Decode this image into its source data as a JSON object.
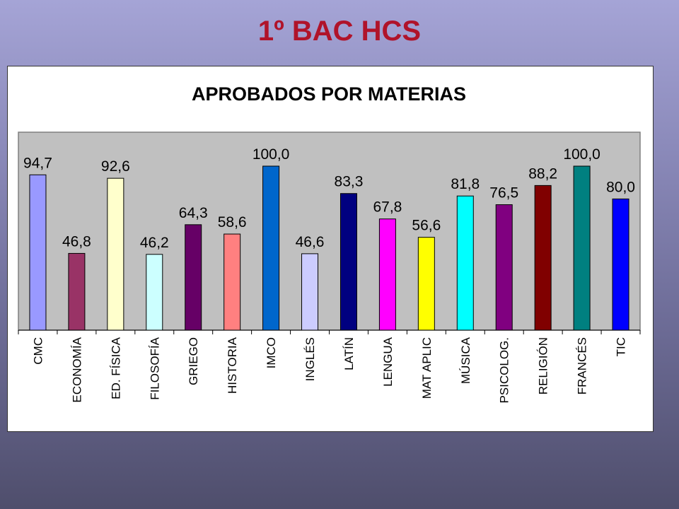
{
  "slide": {
    "title": "1º BAC HCS"
  },
  "chart_data": {
    "type": "bar",
    "title": "APROBADOS POR MATERIAS",
    "xlabel": "",
    "ylabel": "",
    "ylim": [
      0,
      100
    ],
    "grid": false,
    "legend": "none",
    "plot_background": "#c0c0c0",
    "categories": [
      "CMC",
      "ECONOMÍA",
      "ED. FÍSICA",
      "FILOSOFÍA",
      "GRIEGO",
      "HISTORIA",
      "IMCO",
      "INGLÉS",
      "LATÍN",
      "LENGUA",
      "MAT APLIC",
      "MÚSICA",
      "PSICOLOG.",
      "RELIGIÓN",
      "FRANCÉS",
      "TIC"
    ],
    "values": [
      94.7,
      46.8,
      92.6,
      46.2,
      64.3,
      58.6,
      100.0,
      46.6,
      83.3,
      67.8,
      56.6,
      81.8,
      76.5,
      88.2,
      100.0,
      80.0
    ],
    "value_labels": [
      "94,7",
      "46,8",
      "92,6",
      "46,2",
      "64,3",
      "58,6",
      "100,0",
      "46,6",
      "83,3",
      "67,8",
      "56,6",
      "81,8",
      "76,5",
      "88,2",
      "100,0",
      "80,0"
    ],
    "colors": [
      "#9999ff",
      "#993366",
      "#ffffcc",
      "#ccffff",
      "#660066",
      "#ff8080",
      "#0066cc",
      "#ccccff",
      "#000080",
      "#ff00ff",
      "#ffff00",
      "#00ffff",
      "#800080",
      "#800000",
      "#008080",
      "#0000ff"
    ]
  }
}
